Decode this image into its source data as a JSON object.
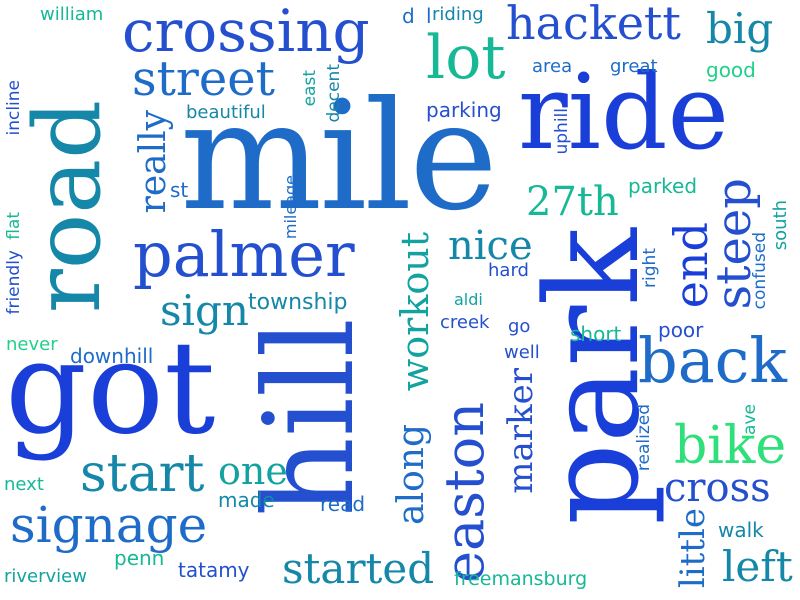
{
  "words": {
    "mile": "mile",
    "park": "park",
    "hill": "hill",
    "got": "got",
    "road": "road",
    "ride": "ride",
    "crossing": "crossing",
    "palmer": "palmer",
    "lot": "lot",
    "hackett": "hackett",
    "back": "back",
    "street": "street",
    "signage": "signage",
    "start": "start",
    "easton": "easton",
    "steep": "steep",
    "end": "end",
    "bike": "bike",
    "cross": "cross",
    "started": "started",
    "sign": "sign",
    "big": "big",
    "nice": "nice",
    "27th": "27th",
    "workout": "workout",
    "left": "left",
    "one": "one",
    "marker": "marker",
    "along": "along",
    "really": "really",
    "little": "little",
    "township": "township",
    "beautiful": "beautiful",
    "william": "william",
    "riding": "riding",
    "d": "d",
    "l": "l",
    "area": "area",
    "great": "great",
    "good": "good",
    "parking": "parking",
    "incline": "incline",
    "east": "east",
    "decent": "decent",
    "uphill": "uphill",
    "st": "st",
    "mileage": "mileage",
    "flat": "flat",
    "friendly": "friendly",
    "parked": "parked",
    "south": "south",
    "confused": "confused",
    "right": "right",
    "hard": "hard",
    "aldi": "aldi",
    "creek": "creek",
    "go": "go",
    "short": "short",
    "poor": "poor",
    "never": "never",
    "downhill": "downhill",
    "well": "well",
    "realized": "realized",
    "ave": "ave",
    "next": "next",
    "made": "made",
    "read": "read",
    "penn": "penn",
    "walk": "walk",
    "riverview": "riverview",
    "tatamy": "tatamy",
    "freemansburg": "freemansburg"
  },
  "palette": {
    "deep_blue": "#1a3fd8",
    "royal_blue": "#2450cf",
    "medium_blue": "#1e6cc8",
    "teal_blue": "#1587a8",
    "teal": "#12a3a0",
    "sea_green": "#16b896",
    "mint": "#21d08a",
    "bright_green": "#2ee07a"
  }
}
